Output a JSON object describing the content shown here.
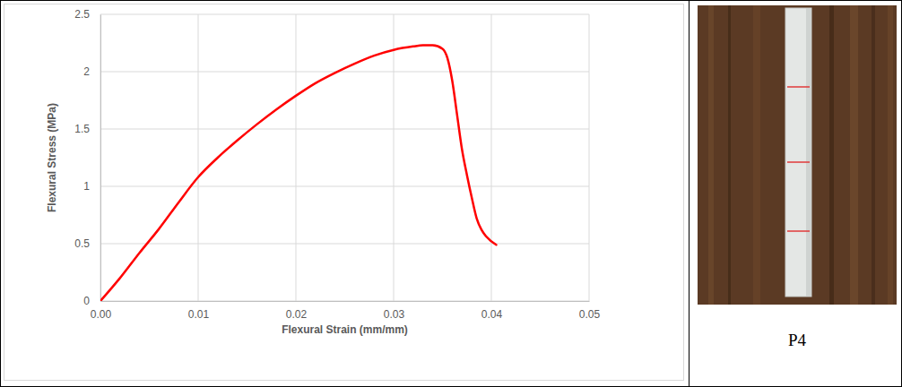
{
  "chart_data": {
    "type": "line",
    "x_label": "Flexural Strain (mm/mm)",
    "y_label": "Flexural Stress (MPa)",
    "x": [
      0,
      0.002,
      0.004,
      0.006,
      0.008,
      0.01,
      0.012,
      0.014,
      0.016,
      0.018,
      0.02,
      0.022,
      0.024,
      0.026,
      0.028,
      0.03,
      0.032,
      0.033,
      0.034,
      0.035,
      0.0355,
      0.036,
      0.0365,
      0.037,
      0.0375,
      0.038,
      0.0385,
      0.039,
      0.0395,
      0.0405
    ],
    "values": [
      0,
      0.2,
      0.42,
      0.63,
      0.86,
      1.08,
      1.25,
      1.4,
      1.54,
      1.67,
      1.79,
      1.9,
      1.99,
      2.07,
      2.14,
      2.19,
      2.22,
      2.23,
      2.23,
      2.2,
      2.12,
      1.92,
      1.62,
      1.32,
      1.1,
      0.9,
      0.72,
      0.62,
      0.56,
      0.49
    ],
    "color": "#ff0000",
    "xlim": [
      0,
      0.05
    ],
    "xticks": [
      {
        "value": 0,
        "label": "0.00"
      },
      {
        "value": 0.01,
        "label": "0.01"
      },
      {
        "value": 0.02,
        "label": "0.02"
      },
      {
        "value": 0.03,
        "label": "0.03"
      },
      {
        "value": 0.04,
        "label": "0.04"
      },
      {
        "value": 0.05,
        "label": "0.05"
      }
    ],
    "ylim": [
      0,
      2.5
    ],
    "yticks": [
      0,
      0.5,
      1,
      1.5,
      2,
      2.5
    ],
    "grid": true
  },
  "photo": {
    "caption": "P4"
  }
}
